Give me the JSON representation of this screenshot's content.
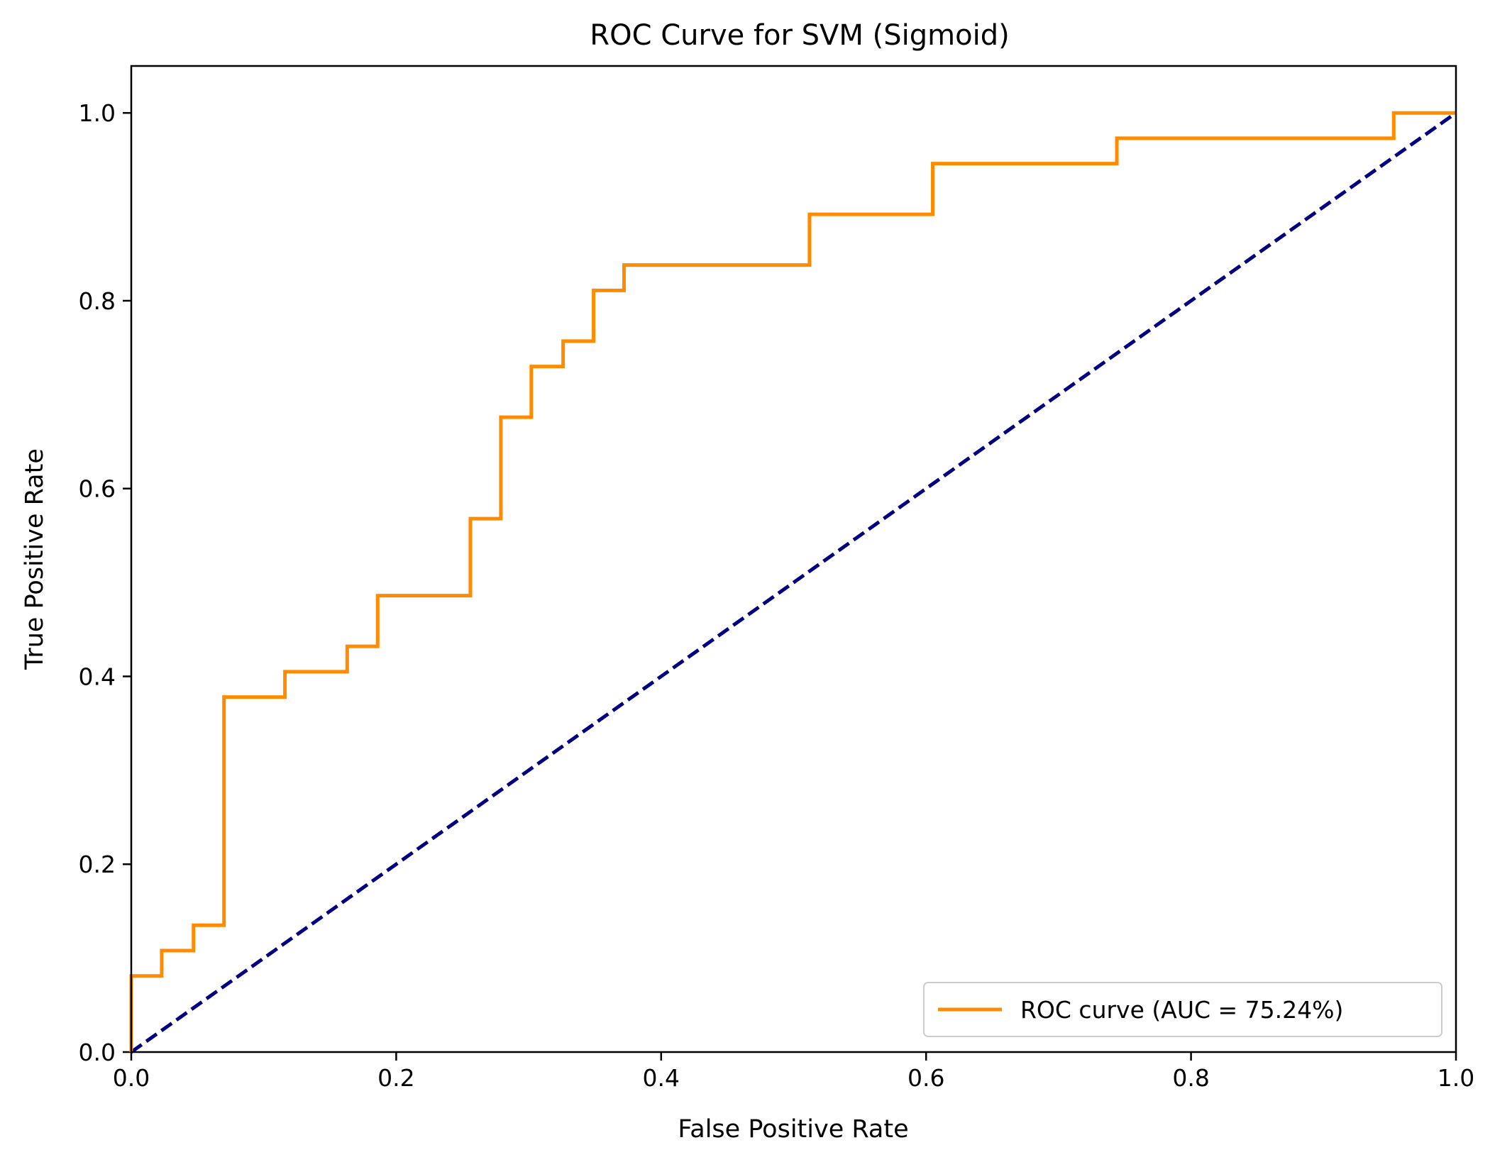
{
  "chart_data": {
    "type": "line",
    "title": "ROC Curve for SVM (Sigmoid)",
    "xlabel": "False Positive Rate",
    "ylabel": "True Positive Rate",
    "xlim": [
      0.0,
      1.0
    ],
    "ylim": [
      0.0,
      1.05
    ],
    "xticks": [
      0.0,
      0.2,
      0.4,
      0.6,
      0.8,
      1.0
    ],
    "yticks": [
      0.0,
      0.2,
      0.4,
      0.6,
      0.8,
      1.0
    ],
    "xtick_labels": [
      "0.0",
      "0.2",
      "0.4",
      "0.6",
      "0.8",
      "1.0"
    ],
    "ytick_labels": [
      "0.0",
      "0.2",
      "0.4",
      "0.6",
      "0.8",
      "1.0"
    ],
    "grid": false,
    "legend_position": "lower-right",
    "series": [
      {
        "name": "ROC curve (AUC = 75.24%)",
        "color": "#ff8c00",
        "style": "step",
        "x": [
          0.0,
          0.0,
          0.023,
          0.023,
          0.047,
          0.047,
          0.07,
          0.07,
          0.116,
          0.116,
          0.163,
          0.163,
          0.186,
          0.186,
          0.256,
          0.256,
          0.279,
          0.279,
          0.302,
          0.302,
          0.326,
          0.326,
          0.349,
          0.349,
          0.372,
          0.372,
          0.512,
          0.512,
          0.605,
          0.605,
          0.744,
          0.744,
          0.953,
          0.953,
          1.0
        ],
        "y": [
          0.0,
          0.081,
          0.081,
          0.108,
          0.108,
          0.135,
          0.135,
          0.378,
          0.378,
          0.405,
          0.405,
          0.432,
          0.432,
          0.486,
          0.486,
          0.568,
          0.568,
          0.676,
          0.676,
          0.73,
          0.73,
          0.757,
          0.757,
          0.811,
          0.811,
          0.838,
          0.838,
          0.892,
          0.892,
          0.946,
          0.946,
          0.973,
          0.973,
          1.0,
          1.0
        ]
      },
      {
        "color": "#000080",
        "style": "dashed",
        "x": [
          0.0,
          1.0
        ],
        "y": [
          0.0,
          1.0
        ]
      }
    ]
  }
}
